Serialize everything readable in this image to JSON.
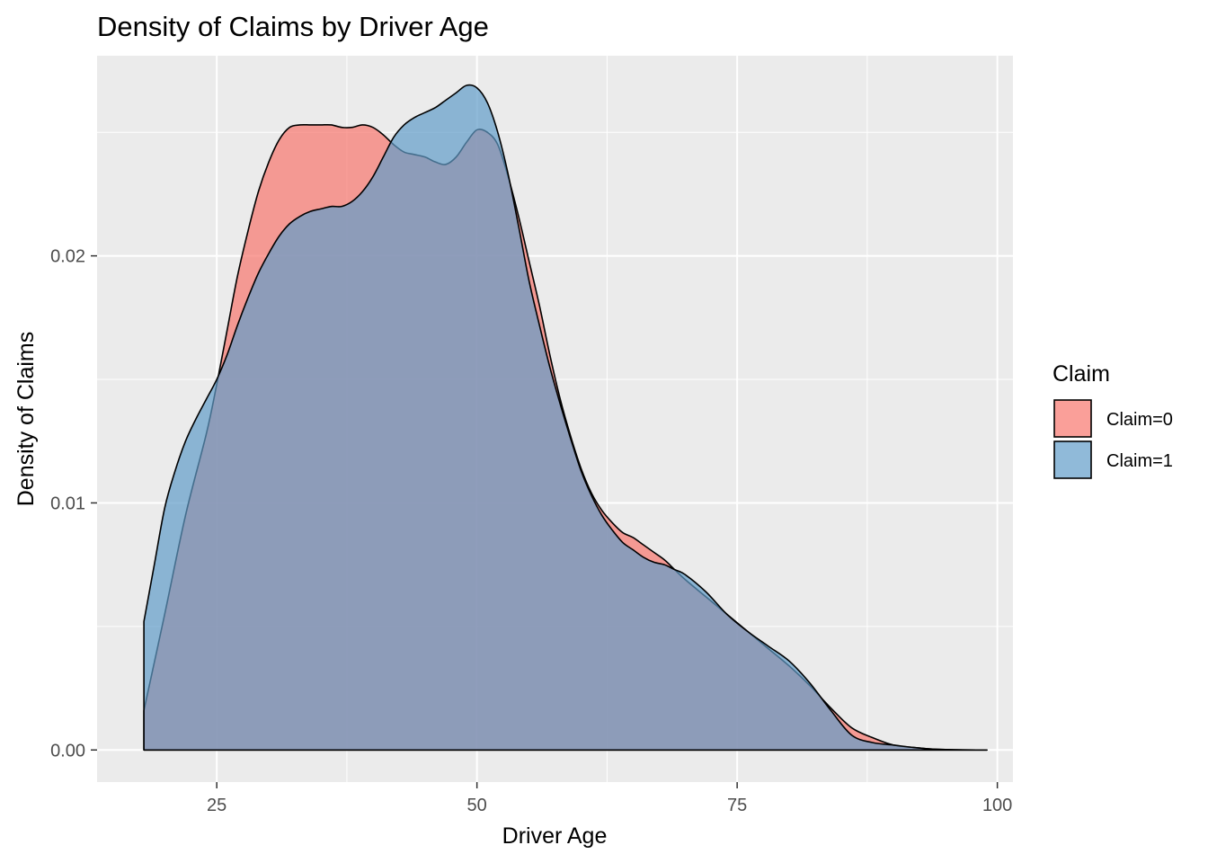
{
  "chart_data": {
    "type": "area",
    "title": "Density of Claims by Driver Age",
    "xlabel": "Driver Age",
    "ylabel": "Density of Claims",
    "xlim": [
      13.5,
      101.5
    ],
    "ylim": [
      -0.0013,
      0.0281
    ],
    "x_ticks": [
      {
        "value": 25,
        "label": "25"
      },
      {
        "value": 50,
        "label": "50"
      },
      {
        "value": 75,
        "label": "75"
      },
      {
        "value": 100,
        "label": "100"
      }
    ],
    "y_ticks": [
      {
        "value": 0.0,
        "label": "0.00"
      },
      {
        "value": 0.01,
        "label": "0.01"
      },
      {
        "value": 0.02,
        "label": "0.02"
      }
    ],
    "grid": true,
    "legend": {
      "title": "Claim",
      "position": "right"
    },
    "series": [
      {
        "name": "Claim=0",
        "color": "#F8766D",
        "points": [
          [
            18,
            0.0016
          ],
          [
            20,
            0.0055
          ],
          [
            22,
            0.0095
          ],
          [
            24,
            0.0128
          ],
          [
            25,
            0.0148
          ],
          [
            26,
            0.017
          ],
          [
            27,
            0.0192
          ],
          [
            28,
            0.021
          ],
          [
            29,
            0.0226
          ],
          [
            30,
            0.0238
          ],
          [
            31,
            0.0247
          ],
          [
            32,
            0.0252
          ],
          [
            33,
            0.0253
          ],
          [
            34,
            0.0253
          ],
          [
            35,
            0.0253
          ],
          [
            36,
            0.0253
          ],
          [
            37,
            0.0252
          ],
          [
            38,
            0.0252
          ],
          [
            39,
            0.0253
          ],
          [
            40,
            0.0252
          ],
          [
            41,
            0.0249
          ],
          [
            42,
            0.0245
          ],
          [
            43,
            0.0242
          ],
          [
            44,
            0.0241
          ],
          [
            45,
            0.024
          ],
          [
            46,
            0.0238
          ],
          [
            47,
            0.0237
          ],
          [
            48,
            0.024
          ],
          [
            49,
            0.0246
          ],
          [
            50,
            0.0251
          ],
          [
            51,
            0.025
          ],
          [
            52,
            0.0245
          ],
          [
            53,
            0.0232
          ],
          [
            54,
            0.0216
          ],
          [
            55,
            0.0198
          ],
          [
            56,
            0.018
          ],
          [
            57,
            0.016
          ],
          [
            58,
            0.0142
          ],
          [
            59,
            0.0127
          ],
          [
            60,
            0.0114
          ],
          [
            61,
            0.0104
          ],
          [
            62,
            0.0097
          ],
          [
            63,
            0.0092
          ],
          [
            64,
            0.0088
          ],
          [
            65,
            0.0086
          ],
          [
            66,
            0.0083
          ],
          [
            67,
            0.008
          ],
          [
            68,
            0.0077
          ],
          [
            69,
            0.0073
          ],
          [
            70,
            0.0069
          ],
          [
            72,
            0.0062
          ],
          [
            74,
            0.0055
          ],
          [
            76,
            0.0048
          ],
          [
            78,
            0.0041
          ],
          [
            80,
            0.0034
          ],
          [
            82,
            0.0026
          ],
          [
            84,
            0.0017
          ],
          [
            86,
            0.0009
          ],
          [
            88,
            0.0005
          ],
          [
            90,
            0.0002
          ],
          [
            92,
            0.0001
          ],
          [
            94,
            3e-05
          ],
          [
            96,
            1e-05
          ],
          [
            98,
            0.0
          ],
          [
            99,
            0.0
          ]
        ]
      },
      {
        "name": "Claim=1",
        "color": "#619CC9",
        "points": [
          [
            18,
            0.0052
          ],
          [
            19,
            0.0075
          ],
          [
            20,
            0.0098
          ],
          [
            21,
            0.0113
          ],
          [
            22,
            0.0125
          ],
          [
            23,
            0.0134
          ],
          [
            24,
            0.0142
          ],
          [
            25,
            0.015
          ],
          [
            26,
            0.016
          ],
          [
            27,
            0.0172
          ],
          [
            28,
            0.0183
          ],
          [
            29,
            0.0193
          ],
          [
            30,
            0.0201
          ],
          [
            31,
            0.0208
          ],
          [
            32,
            0.0213
          ],
          [
            33,
            0.0216
          ],
          [
            34,
            0.0218
          ],
          [
            35,
            0.0219
          ],
          [
            36,
            0.022
          ],
          [
            37,
            0.022
          ],
          [
            38,
            0.0222
          ],
          [
            39,
            0.0226
          ],
          [
            40,
            0.0232
          ],
          [
            41,
            0.024
          ],
          [
            42,
            0.0248
          ],
          [
            43,
            0.0253
          ],
          [
            44,
            0.0256
          ],
          [
            45,
            0.0258
          ],
          [
            46,
            0.026
          ],
          [
            47,
            0.0263
          ],
          [
            48,
            0.0266
          ],
          [
            49,
            0.0269
          ],
          [
            50,
            0.0268
          ],
          [
            51,
            0.0262
          ],
          [
            52,
            0.025
          ],
          [
            53,
            0.0233
          ],
          [
            54,
            0.0212
          ],
          [
            55,
            0.019
          ],
          [
            56,
            0.0172
          ],
          [
            57,
            0.0155
          ],
          [
            58,
            0.014
          ],
          [
            59,
            0.0126
          ],
          [
            60,
            0.0113
          ],
          [
            61,
            0.0103
          ],
          [
            62,
            0.0095
          ],
          [
            63,
            0.0089
          ],
          [
            64,
            0.0084
          ],
          [
            65,
            0.0081
          ],
          [
            66,
            0.0078
          ],
          [
            67,
            0.0076
          ],
          [
            68,
            0.0075
          ],
          [
            69,
            0.0073
          ],
          [
            70,
            0.0071
          ],
          [
            72,
            0.0064
          ],
          [
            74,
            0.0055
          ],
          [
            76,
            0.0048
          ],
          [
            78,
            0.0042
          ],
          [
            80,
            0.0036
          ],
          [
            82,
            0.0027
          ],
          [
            84,
            0.0016
          ],
          [
            86,
            0.0006
          ],
          [
            88,
            0.0003
          ],
          [
            90,
            0.0002
          ],
          [
            92,
            0.0001
          ],
          [
            94,
            3e-05
          ],
          [
            96,
            1e-05
          ],
          [
            98,
            0.0
          ],
          [
            99,
            0.0
          ]
        ]
      }
    ]
  }
}
